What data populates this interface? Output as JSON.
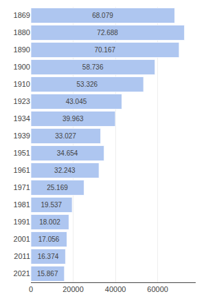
{
  "chart_data": {
    "type": "bar",
    "orientation": "horizontal",
    "categories": [
      "1869",
      "1880",
      "1890",
      "1900",
      "1910",
      "1923",
      "1934",
      "1939",
      "1951",
      "1961",
      "1971",
      "1981",
      "1991",
      "2001",
      "2011",
      "2021"
    ],
    "values": [
      68079,
      72688,
      70167,
      58736,
      53326,
      43045,
      39963,
      33027,
      34654,
      32243,
      25169,
      19537,
      18002,
      17056,
      16374,
      15867
    ],
    "value_labels": [
      "68.079",
      "72.688",
      "70.167",
      "58.736",
      "53.326",
      "43.045",
      "39.963",
      "33.027",
      "34.654",
      "32.243",
      "25.169",
      "19.537",
      "18.002",
      "17.056",
      "16.374",
      "15.867"
    ],
    "data_labels": true,
    "color": "#aec6f0",
    "xlim": [
      0,
      78000
    ],
    "xticks": [
      0,
      20000,
      40000,
      60000
    ],
    "grid": true
  }
}
